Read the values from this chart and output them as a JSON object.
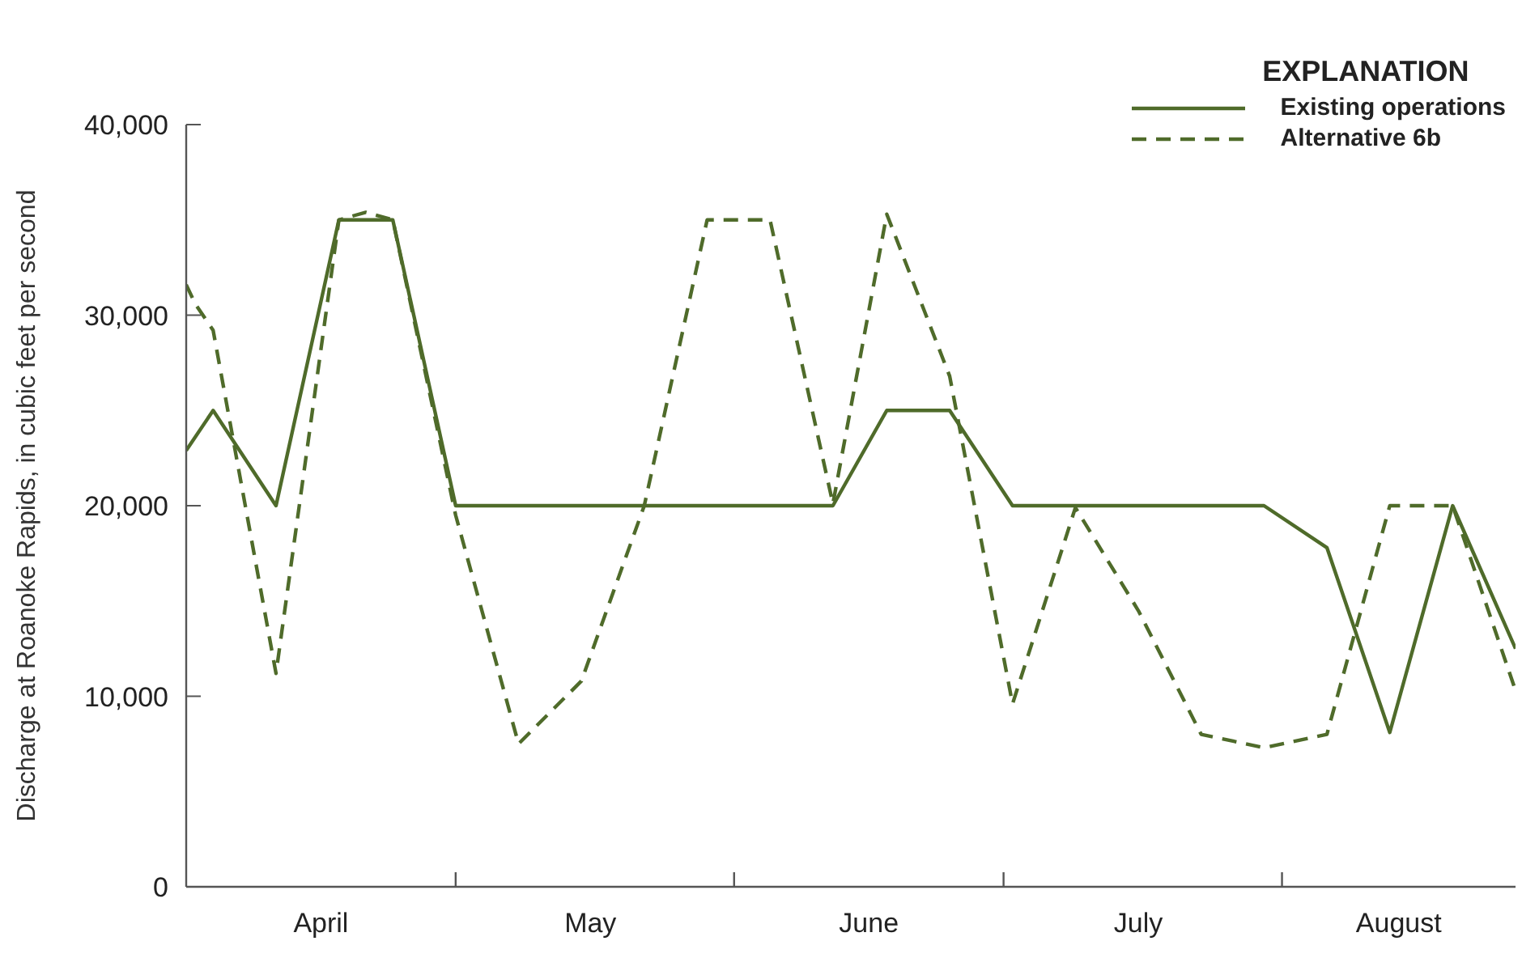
{
  "chart_data": {
    "type": "line",
    "ylabel": "Discharge at Roanoke Rapids, in cubic feet per second",
    "legend_title": "EXPLANATION",
    "legend": "top right",
    "grid": false,
    "xlim": [
      "--04-01",
      "--08-27"
    ],
    "xticks": [
      {
        "value": "--04-16",
        "label": "April"
      },
      {
        "value": "--05-01",
        "label": null
      },
      {
        "value": "--05-16",
        "label": "May"
      },
      {
        "value": "--06-01",
        "label": null
      },
      {
        "value": "--06-16",
        "label": "June"
      },
      {
        "value": "--07-01",
        "label": null
      },
      {
        "value": "--07-16",
        "label": "July"
      },
      {
        "value": "--08-01",
        "label": null
      },
      {
        "value": "--08-14",
        "label": "August"
      }
    ],
    "ylim": [
      0,
      40000
    ],
    "yticks": [
      {
        "value": 0,
        "label": "0"
      },
      {
        "value": 10000,
        "label": "10,000"
      },
      {
        "value": 20000,
        "label": "20,000"
      },
      {
        "value": 30000,
        "label": "30,000"
      },
      {
        "value": 40000,
        "label": "40,000"
      }
    ],
    "series": [
      {
        "name": "Existing operations",
        "color": "#4f6b2a",
        "line_style": "solid",
        "x": [
          "--04-01",
          "--04-04",
          "--04-11",
          "--04-18",
          "--04-24",
          "--05-01",
          "--06-12",
          "--06-18",
          "--06-25",
          "--07-02",
          "--07-30",
          "--08-06",
          "--08-13",
          "--08-20",
          "--08-27"
        ],
        "values": [
          22900,
          25000,
          20000,
          35000,
          35000,
          20000,
          20000,
          25000,
          25000,
          20000,
          20000,
          17800,
          8100,
          20000,
          12500
        ]
      },
      {
        "name": "Alternative 6b",
        "color": "#4f6b2a",
        "line_style": "dashed",
        "x": [
          "--04-01",
          "--04-02",
          "--04-04",
          "--04-11",
          "--04-18",
          "--04-21",
          "--04-24",
          "--05-01",
          "--05-08",
          "--05-15",
          "--05-22",
          "--05-29",
          "--06-05",
          "--06-12",
          "--06-18",
          "--06-25",
          "--07-02",
          "--07-09",
          "--07-16",
          "--07-23",
          "--07-30",
          "--08-06",
          "--08-13",
          "--08-20",
          "--08-27"
        ],
        "values": [
          31600,
          30600,
          29200,
          11200,
          35000,
          35400,
          35000,
          19500,
          7500,
          10800,
          20000,
          35000,
          35000,
          20100,
          35300,
          26800,
          9600,
          19900,
          14500,
          8000,
          7300,
          8000,
          20000,
          20000,
          10300
        ]
      }
    ]
  }
}
